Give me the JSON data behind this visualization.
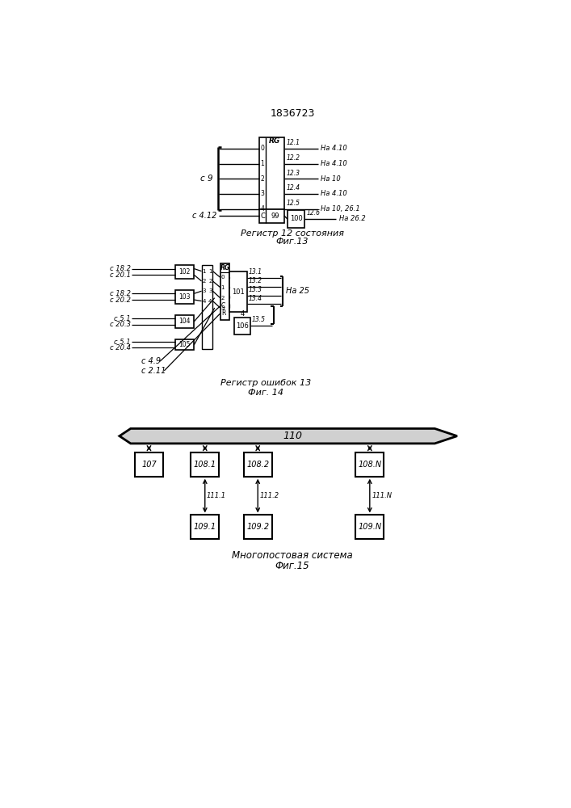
{
  "title": "1836723",
  "fig13_label": "Регистр 12 состояния",
  "fig13_caption": "Фиг.13",
  "fig14_label": "Регистр ошибок 13",
  "fig14_caption": "Фиг. 14",
  "fig15_label": "Многопостовая система",
  "fig15_caption": "Фиг.15",
  "bg_color": "#ffffff",
  "line_color": "#000000",
  "fig13_out_labels": [
    "12.1",
    "12.2",
    "12.3",
    "12.4",
    "12.5"
  ],
  "fig13_dest_labels": [
    "На 4.10",
    "На 4.10",
    "На 10",
    "На 4.10",
    "На 10, 26.1"
  ],
  "fig14_left_inputs": [
    "с 18.2",
    "с 20.1",
    "с 18.2",
    "с 20.2",
    "с 5.1",
    "с 20.3",
    "с 5.1",
    "с 20.4"
  ],
  "fig14_out_labels": [
    "13.1",
    "13.2",
    "13.3",
    "13.4"
  ],
  "fig15_row1_labels": [
    "107",
    "108.1",
    "108.2",
    "108.N"
  ],
  "fig15_row2_labels": [
    "109.1",
    "109.2",
    "109.N"
  ],
  "fig15_conn_labels": [
    "111.1",
    "111.2",
    "111.N"
  ]
}
